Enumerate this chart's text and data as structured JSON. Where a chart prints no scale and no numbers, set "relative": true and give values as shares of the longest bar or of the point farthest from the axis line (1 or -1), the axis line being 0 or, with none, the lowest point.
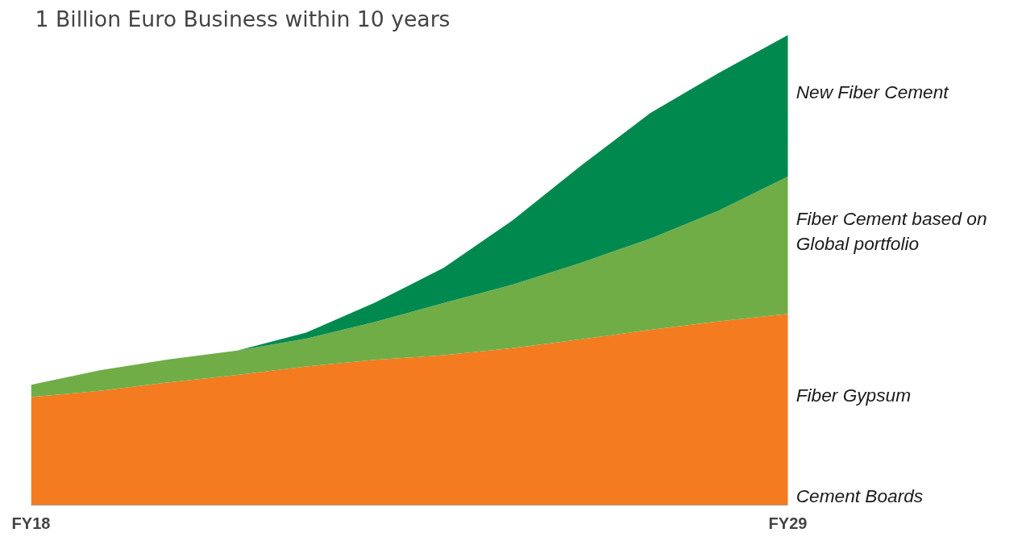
{
  "chart_data": {
    "type": "area",
    "title": "1 Billion Euro Business within 10 years",
    "relative": true,
    "stacked": true,
    "categories": [
      "FY18",
      null,
      null,
      null,
      null,
      null,
      null,
      null,
      null,
      null,
      null,
      "FY29"
    ],
    "series": [
      {
        "name": "Fiber Gypsum",
        "color": "#f47b20",
        "values": [
          0.23,
          0.243,
          0.261,
          0.277,
          0.295,
          0.309,
          0.319,
          0.334,
          0.353,
          0.373,
          0.391,
          0.407
        ]
      },
      {
        "name": "Fiber Cement based on Global portfolio",
        "color": "#70ad47",
        "values": [
          0.026,
          0.044,
          0.049,
          0.052,
          0.059,
          0.081,
          0.111,
          0.135,
          0.163,
          0.194,
          0.236,
          0.292
        ]
      },
      {
        "name": "New Fiber Cement",
        "color": "#00894f",
        "values": [
          0,
          0,
          0,
          0,
          0.013,
          0.041,
          0.075,
          0.137,
          0.207,
          0.267,
          0.293,
          0.301
        ]
      }
    ],
    "annotations": [
      "Cement Boards"
    ],
    "grid": false
  }
}
